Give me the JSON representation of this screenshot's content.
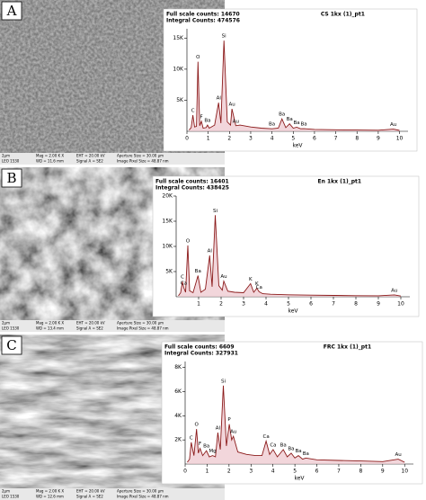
{
  "panels": [
    {
      "letter": "A",
      "info": [
        "2µm",
        "LEO 1530",
        "Mag =  2.00 K X",
        "WD = 11.6 mm",
        "EHT = 20.00 kV",
        "Signal A = SE2",
        "Aperture Size = 30.00 µm",
        "Image Pixel Size = 48.87 nm"
      ]
    },
    {
      "letter": "B",
      "info": [
        "2µm",
        "LEO 1530",
        "Mag =  2.00 K X",
        "WD = 13.4 mm",
        "EHT = 20.00 kV",
        "Signal A = SE2",
        "Aperture Size = 30.00 µm",
        "Image Pixel Size = 48.87 nm"
      ]
    },
    {
      "letter": "C",
      "info": [
        "2µm",
        "LEO 1530",
        "Mag =  2.00 K X",
        "WD = 12.6 mm",
        "EHT = 20.00 kV",
        "Signal A = SE2",
        "Aperture Size = 30.00 µm",
        "Image Pixel Size = 48.87 nm"
      ]
    }
  ],
  "chart_data": [
    {
      "type": "line",
      "title": "CS 1kx (1)_pt1",
      "full_scale": "Full scale counts: 14670",
      "integral": "Integral Counts: 474576",
      "x_label": "keV",
      "xlim": [
        0,
        10.4
      ],
      "xticks": [
        0,
        1,
        2,
        3,
        4,
        5,
        6,
        7,
        8,
        9,
        10
      ],
      "ylim": [
        0,
        16500
      ],
      "yticks": [
        {
          "value": 5000,
          "label": "5K"
        },
        {
          "value": 10000,
          "label": "10K"
        },
        {
          "value": 15000,
          "label": "15K"
        }
      ],
      "x": [
        0.1,
        0.2,
        0.28,
        0.36,
        0.45,
        0.52,
        0.6,
        0.68,
        0.76,
        0.9,
        0.97,
        1.05,
        1.3,
        1.49,
        1.6,
        1.74,
        1.9,
        2.05,
        2.12,
        2.3,
        2.5,
        3.0,
        3.5,
        4.0,
        4.3,
        4.47,
        4.65,
        4.83,
        5.0,
        5.16,
        5.35,
        5.5,
        6.0,
        7.0,
        8.0,
        9.0,
        9.71,
        10.0
      ],
      "series": [
        {
          "color": "#8b1a1a",
          "values": [
            200,
            600,
            2600,
            700,
            800,
            11200,
            900,
            1600,
            500,
            600,
            1000,
            500,
            1000,
            4600,
            1300,
            14600,
            1500,
            1000,
            3600,
            900,
            1000,
            700,
            500,
            400,
            500,
            2000,
            600,
            1200,
            500,
            650,
            400,
            420,
            300,
            250,
            200,
            180,
            350,
            150
          ]
        }
      ],
      "peaks": [
        {
          "label": "C",
          "x": 0.28
        },
        {
          "label": "O",
          "x": 0.52
        },
        {
          "label": "F",
          "x": 0.68
        },
        {
          "label": "Ba",
          "x": 0.97
        },
        {
          "label": "Al",
          "x": 1.49
        },
        {
          "label": "Si",
          "x": 1.74
        },
        {
          "label": "Au",
          "x": 2.12
        },
        {
          "label": "Au",
          "x": 2.3
        },
        {
          "label": "Ba",
          "x": 4.0
        },
        {
          "label": "Ba",
          "x": 4.47
        },
        {
          "label": "Ba",
          "x": 4.83
        },
        {
          "label": "Ba",
          "x": 5.16
        },
        {
          "label": "Ba",
          "x": 5.5
        },
        {
          "label": "Au",
          "x": 9.71
        }
      ]
    },
    {
      "type": "line",
      "title": "En 1kx (1)_pt1",
      "full_scale": "Full scale counts: 16401",
      "integral": "Integral Counts: 438425",
      "x_label": "keV",
      "xlim": [
        0,
        10.4
      ],
      "xticks": [
        1,
        2,
        3,
        4,
        5,
        6,
        7,
        8,
        9,
        10
      ],
      "ylim": [
        0,
        20000
      ],
      "yticks": [
        {
          "value": 5000,
          "label": "5K"
        },
        {
          "value": 10000,
          "label": "10K"
        },
        {
          "value": 15000,
          "label": "15K"
        },
        {
          "value": 20000,
          "label": "20K"
        }
      ],
      "x": [
        0.1,
        0.2,
        0.28,
        0.34,
        0.42,
        0.52,
        0.6,
        0.75,
        0.97,
        1.1,
        1.3,
        1.49,
        1.6,
        1.74,
        1.9,
        2.05,
        2.12,
        2.3,
        2.6,
        3.0,
        3.31,
        3.45,
        3.59,
        3.69,
        3.85,
        4.2,
        5.0,
        6.0,
        7.0,
        8.0,
        9.0,
        9.71,
        10.0
      ],
      "series": [
        {
          "color": "#8b1a1a",
          "values": [
            200,
            800,
            3000,
            1800,
            900,
            10200,
            1200,
            800,
            4200,
            900,
            1500,
            8200,
            2000,
            16200,
            2200,
            1300,
            3100,
            1100,
            900,
            800,
            2600,
            900,
            1700,
            1000,
            600,
            500,
            400,
            320,
            260,
            220,
            200,
            380,
            150
          ]
        }
      ],
      "peaks": [
        {
          "label": "C",
          "x": 0.28
        },
        {
          "label": "Ca",
          "x": 0.34
        },
        {
          "label": "O",
          "x": 0.52
        },
        {
          "label": "Ba",
          "x": 0.97
        },
        {
          "label": "Al",
          "x": 1.49
        },
        {
          "label": "Si",
          "x": 1.74
        },
        {
          "label": "Au",
          "x": 2.12
        },
        {
          "label": "K",
          "x": 3.31
        },
        {
          "label": "K",
          "x": 3.59
        },
        {
          "label": "Ca",
          "x": 3.69
        },
        {
          "label": "Au",
          "x": 9.71
        }
      ]
    },
    {
      "type": "line",
      "title": "FRC 1kx (1)_pt1",
      "full_scale": "Full scale counts: 6609",
      "integral": "Integral Counts: 327931",
      "x_label": "keV",
      "xlim": [
        0,
        10.4
      ],
      "xticks": [
        0,
        1,
        2,
        3,
        4,
        5,
        6,
        7,
        8,
        9,
        10
      ],
      "ylim": [
        0,
        8500
      ],
      "yticks": [
        {
          "value": 2000,
          "label": "2K"
        },
        {
          "value": 4000,
          "label": "4K"
        },
        {
          "value": 6000,
          "label": "6K"
        },
        {
          "value": 8000,
          "label": "8K"
        }
      ],
      "x": [
        0.1,
        0.2,
        0.28,
        0.4,
        0.52,
        0.6,
        0.68,
        0.8,
        0.97,
        1.1,
        1.25,
        1.38,
        1.49,
        1.6,
        1.74,
        1.88,
        2.01,
        2.12,
        2.2,
        2.4,
        2.8,
        3.2,
        3.5,
        3.69,
        3.85,
        4.01,
        4.2,
        4.47,
        4.65,
        4.83,
        5.0,
        5.16,
        5.35,
        5.5,
        6.0,
        7.0,
        8.0,
        9.0,
        9.71,
        10.0
      ],
      "series": [
        {
          "color": "#8b1a1a",
          "values": [
            150,
            400,
            1800,
            700,
            2900,
            900,
            1300,
            700,
            1100,
            600,
            700,
            600,
            2600,
            1200,
            6500,
            1500,
            3300,
            2000,
            2300,
            1000,
            800,
            700,
            700,
            1900,
            800,
            1200,
            600,
            1200,
            600,
            900,
            500,
            700,
            400,
            500,
            350,
            300,
            250,
            200,
            400,
            150
          ]
        }
      ],
      "peaks": [
        {
          "label": "C",
          "x": 0.28
        },
        {
          "label": "O",
          "x": 0.52
        },
        {
          "label": "F",
          "x": 0.68
        },
        {
          "label": "Ba",
          "x": 0.97
        },
        {
          "label": "Mg",
          "x": 1.25
        },
        {
          "label": "Al",
          "x": 1.49
        },
        {
          "label": "Si",
          "x": 1.74
        },
        {
          "label": "P",
          "x": 2.01
        },
        {
          "label": "Au",
          "x": 2.2
        },
        {
          "label": "Ca",
          "x": 3.69
        },
        {
          "label": "Ca",
          "x": 4.01
        },
        {
          "label": "Ba",
          "x": 4.47
        },
        {
          "label": "Ba",
          "x": 4.83
        },
        {
          "label": "Ba",
          "x": 5.16
        },
        {
          "label": "Ba",
          "x": 5.5
        },
        {
          "label": "Au",
          "x": 9.71
        }
      ]
    }
  ]
}
